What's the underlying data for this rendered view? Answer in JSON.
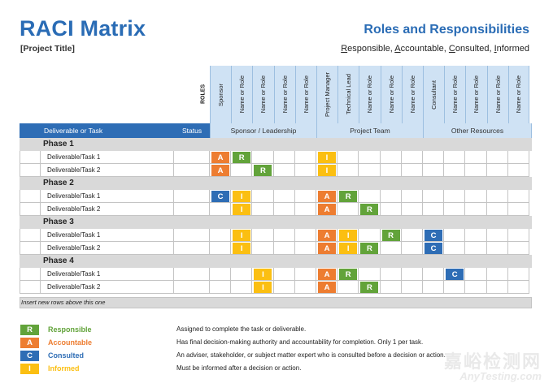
{
  "header": {
    "title": "RACI Matrix",
    "project": "[Project Title]",
    "rr_title": "Roles and Responsibilities",
    "rr_words": [
      {
        "first": "R",
        "rest": "esponsible, "
      },
      {
        "first": "A",
        "rest": "ccountable, "
      },
      {
        "first": "C",
        "rest": "onsulted, "
      },
      {
        "first": "I",
        "rest": "nformed"
      }
    ]
  },
  "roles_label": "ROLES",
  "roles": [
    "Sponsor",
    "Name or Role",
    "Name or Role",
    "Name or Role",
    "Name or Role",
    "Project Manager",
    "Technical Lead",
    "Name or Role",
    "Name or Role",
    "Name or Role",
    "Consultant",
    "Name or Role",
    "Name or Role",
    "Name or Role",
    "Name or Role"
  ],
  "table_header": {
    "deliverable": "Deliverable or Task",
    "status": "Status",
    "groups": [
      "Sponsor / Leadership",
      "Project Team",
      "Other Resources"
    ]
  },
  "phases": [
    {
      "name": "Phase 1",
      "rows": [
        {
          "task": "Deliverable/Task 1",
          "cells": [
            "A",
            "R",
            "",
            "",
            "",
            "I",
            "",
            "",
            "",
            "",
            "",
            "",
            "",
            "",
            ""
          ]
        },
        {
          "task": "Deliverable/Task 2",
          "cells": [
            "A",
            "",
            "R",
            "",
            "",
            "I",
            "",
            "",
            "",
            "",
            "",
            "",
            "",
            "",
            ""
          ]
        }
      ]
    },
    {
      "name": "Phase 2",
      "rows": [
        {
          "task": "Deliverable/Task 1",
          "cells": [
            "C",
            "I",
            "",
            "",
            "",
            "A",
            "R",
            "",
            "",
            "",
            "",
            "",
            "",
            "",
            ""
          ]
        },
        {
          "task": "Deliverable/Task 2",
          "cells": [
            "",
            "I",
            "",
            "",
            "",
            "A",
            "",
            "R",
            "",
            "",
            "",
            "",
            "",
            "",
            ""
          ]
        }
      ]
    },
    {
      "name": "Phase 3",
      "rows": [
        {
          "task": "Deliverable/Task 1",
          "cells": [
            "",
            "I",
            "",
            "",
            "",
            "A",
            "I",
            "",
            "R",
            "",
            "C",
            "",
            "",
            "",
            ""
          ]
        },
        {
          "task": "Deliverable/Task 2",
          "cells": [
            "",
            "I",
            "",
            "",
            "",
            "A",
            "I",
            "R",
            "",
            "",
            "C",
            "",
            "",
            "",
            ""
          ]
        }
      ]
    },
    {
      "name": "Phase 4",
      "rows": [
        {
          "task": "Deliverable/Task 1",
          "cells": [
            "",
            "",
            "I",
            "",
            "",
            "A",
            "R",
            "",
            "",
            "",
            "",
            "C",
            "",
            "",
            ""
          ]
        },
        {
          "task": "Deliverable/Task 2",
          "cells": [
            "",
            "",
            "I",
            "",
            "",
            "A",
            "",
            "R",
            "",
            "",
            "",
            "",
            "",
            "",
            ""
          ]
        }
      ]
    }
  ],
  "insert_note": "Insert new rows above this one",
  "legend": [
    {
      "letter": "R",
      "name": "Responsible",
      "desc": "Assigned to complete the task or deliverable.",
      "color": "#62a33a"
    },
    {
      "letter": "A",
      "name": "Accountable",
      "desc": "Has final decision-making authority and accountability for completion. Only 1 per task.",
      "color": "#ed7d31"
    },
    {
      "letter": "C",
      "name": "Consulted",
      "desc": "An adviser, stakeholder, or subject matter expert who is consulted before a decision or action.",
      "color": "#2e6db5"
    },
    {
      "letter": "I",
      "name": "Informed",
      "desc": "Must be informed after a decision or action.",
      "color": "#fbbf12"
    }
  ],
  "watermark": {
    "cn": "嘉峪检测网",
    "en": "AnyTesting.com"
  },
  "colors": {
    "R": "#62a33a",
    "A": "#ed7d31",
    "C": "#2e6db5",
    "I": "#fbbf12",
    "header_blue": "#2e6db5",
    "role_bg": "#cfe2f4"
  }
}
